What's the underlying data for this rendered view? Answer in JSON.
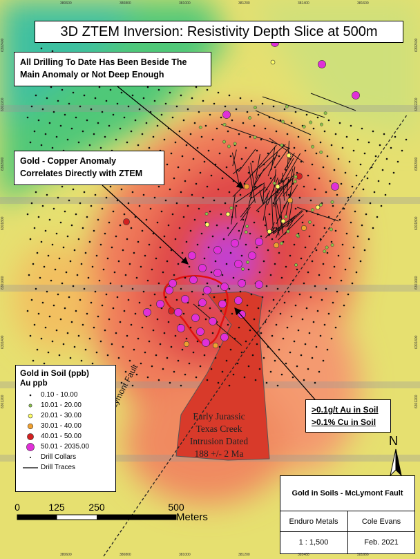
{
  "title": "3D ZTEM Inversion: Resistivity Depth Slice at 500m",
  "callouts": [
    {
      "lines": [
        "All Drilling To Date Has Been Beside The",
        "Main Anomaly or Not Deep Enough"
      ]
    },
    {
      "lines": [
        "Gold - Copper Anomaly",
        "Correlates Directly with ZTEM"
      ]
    },
    {
      "lines": [
        ">0.1g/t Au in Soil",
        ">0.1% Cu in Soil"
      ]
    }
  ],
  "intrusion_label": [
    "Early Jurassic",
    "Texas Creek",
    "Intrusion Dated",
    "188 +/- 2 Ma"
  ],
  "fault_label": "McLymont Fault",
  "legend": {
    "title": "Gold in Soil (ppb)",
    "subtitle": "Au ppb",
    "items": [
      {
        "label": "0.10 - 10.00",
        "color": "#111111"
      },
      {
        "label": "10.01 - 20.00",
        "color": "#8bc34a"
      },
      {
        "label": "20.01 - 30.00",
        "color": "#ffff66"
      },
      {
        "label": "30.01 - 40.00",
        "color": "#f0a030"
      },
      {
        "label": "40.01 - 50.00",
        "color": "#d32020"
      },
      {
        "label": "50.01 - 2035.00",
        "color": "#e030d8"
      }
    ],
    "drill_collars": "Drill Collars",
    "drill_traces": "Drill Traces"
  },
  "scale_bar": {
    "ticks": [
      "0",
      "125",
      "250",
      "500"
    ],
    "unit": "Meters"
  },
  "north": "N",
  "title_block": {
    "title": "Gold in Soils - McLymont Fault",
    "company": "Enduro Metals",
    "author": "Cole Evans",
    "scale": "1 : 1,500",
    "date": "Feb. 2021"
  },
  "grid_labels": {
    "easting": [
      "380600",
      "380800",
      "381000",
      "381200",
      "381400",
      "381600"
    ],
    "northing": [
      "6302400",
      "6302200",
      "6302000",
      "6301800",
      "6301600",
      "6301400",
      "6301200"
    ]
  }
}
